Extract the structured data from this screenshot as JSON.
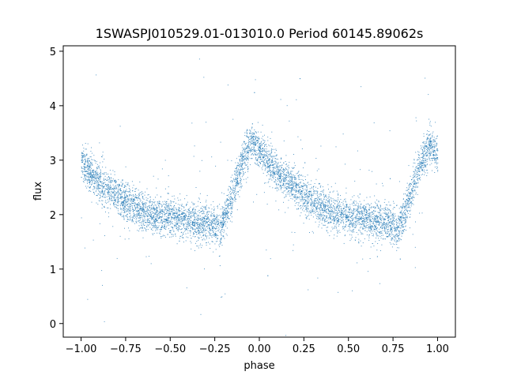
{
  "chart_data": {
    "type": "scatter",
    "title": "1SWASPJ010529.01-013010.0 Period 60145.89062s",
    "xlabel": "phase",
    "ylabel": "flux",
    "xlim": [
      -1.1,
      1.1
    ],
    "ylim": [
      -0.25,
      5.1
    ],
    "xticks": [
      -1.0,
      -0.75,
      -0.5,
      -0.25,
      0.0,
      0.25,
      0.5,
      0.75,
      1.0
    ],
    "xtick_labels": [
      "−1.00",
      "−0.75",
      "−0.50",
      "−0.25",
      "0.00",
      "0.25",
      "0.50",
      "0.75",
      "1.00"
    ],
    "yticks": [
      0,
      1,
      2,
      3,
      4,
      5
    ],
    "ytick_labels": [
      "0",
      "1",
      "2",
      "3",
      "4",
      "5"
    ],
    "grid": false,
    "point_color": "#1f77b4",
    "series": [
      {
        "x": [
          -1.0,
          -0.9,
          -0.8,
          -0.7,
          -0.6,
          -0.5,
          -0.4,
          -0.3,
          -0.22,
          -0.15,
          -0.1,
          -0.05,
          0.0,
          0.1,
          0.2,
          0.3,
          0.4,
          0.5,
          0.6,
          0.7,
          0.78,
          0.85,
          0.9,
          0.95,
          1.0
        ],
        "y": [
          2.95,
          2.6,
          2.35,
          2.15,
          2.0,
          1.95,
          1.9,
          1.85,
          1.75,
          2.4,
          2.95,
          3.35,
          3.15,
          2.75,
          2.5,
          2.25,
          2.05,
          1.95,
          1.9,
          1.85,
          1.75,
          2.4,
          2.95,
          3.3,
          3.1
        ]
      }
    ]
  }
}
